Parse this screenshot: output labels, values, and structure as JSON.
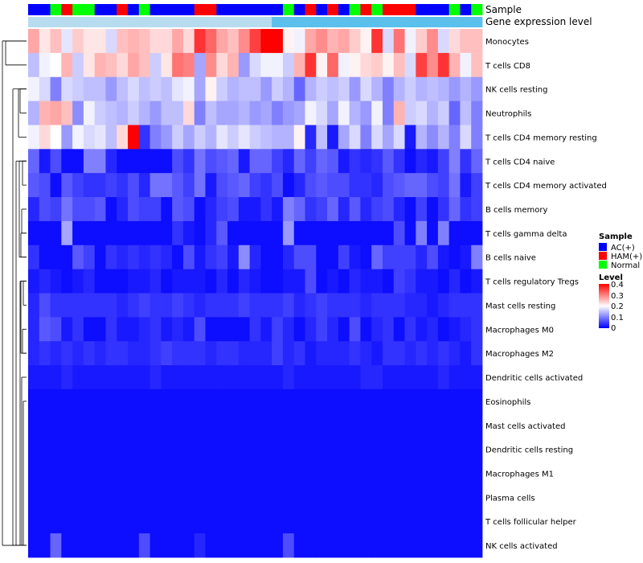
{
  "chart_data": {
    "type": "heatmap",
    "title": "",
    "xlabel": "",
    "ylabel": "",
    "rows": [
      "Monocytes",
      "T cells CD8",
      "NK cells resting",
      "Neutrophils",
      "T cells CD4 memory resting",
      "T cells CD4 naive",
      "T cells CD4 memory activated",
      "B cells memory",
      "T cells gamma delta",
      "B cells naive",
      "T cells regulatory  Tregs",
      "Mast cells resting",
      "Macrophages M0",
      "Macrophages M2",
      "Dendritic cells activated",
      "Eosinophils",
      "Mast cells activated",
      "Dendritic cells resting",
      "Macrophages M1",
      "Plasma cells",
      "T cells follicular helper",
      "NK cells activated"
    ],
    "column_annotations": [
      {
        "name": "Sample",
        "values": [
          "AC(+)",
          "AC(+)",
          "Normal",
          "HAM(+)",
          "Normal",
          "Normal",
          "AC(+)",
          "AC(+)",
          "HAM(+)",
          "AC(+)",
          "Normal",
          "AC(+)",
          "AC(+)",
          "AC(+)",
          "AC(+)",
          "HAM(+)",
          "HAM(+)",
          "AC(+)",
          "AC(+)",
          "AC(+)",
          "AC(+)",
          "AC(+)",
          "AC(+)",
          "Normal",
          "AC(+)",
          "HAM(+)",
          "AC(+)",
          "HAM(+)",
          "AC(+)",
          "Normal",
          "HAM(+)",
          "Normal",
          "HAM(+)",
          "HAM(+)",
          "HAM(+)",
          "AC(+)",
          "AC(+)",
          "AC(+)",
          "Normal",
          "AC(+)",
          "Normal"
        ]
      },
      {
        "name": "Gene expression level",
        "values": [
          "low",
          "low",
          "low",
          "low",
          "low",
          "low",
          "low",
          "low",
          "low",
          "low",
          "low",
          "low",
          "low",
          "low",
          "low",
          "low",
          "low",
          "low",
          "low",
          "low",
          "low",
          "low",
          "high",
          "high",
          "high",
          "high",
          "high",
          "high",
          "high",
          "high",
          "high",
          "high",
          "high",
          "high",
          "high",
          "high",
          "high",
          "high",
          "high",
          "high",
          "high"
        ]
      }
    ],
    "values": [
      [
        0.27,
        0.22,
        0.25,
        0.18,
        0.24,
        0.22,
        0.22,
        0.17,
        0.25,
        0.26,
        0.25,
        0.23,
        0.23,
        0.27,
        0.23,
        0.36,
        0.32,
        0.27,
        0.25,
        0.29,
        0.35,
        0.41,
        0.42,
        0.21,
        0.19,
        0.27,
        0.29,
        0.26,
        0.27,
        0.24,
        0.21,
        0.36,
        0.17,
        0.31,
        0.19,
        0.24,
        0.29,
        0.17,
        0.23,
        0.25,
        0.25
      ],
      [
        0.15,
        0.19,
        0.2,
        0.26,
        0.16,
        0.22,
        0.26,
        0.25,
        0.23,
        0.27,
        0.25,
        0.16,
        0.22,
        0.31,
        0.3,
        0.13,
        0.29,
        0.23,
        0.26,
        0.12,
        0.17,
        0.19,
        0.19,
        0.16,
        0.26,
        0.36,
        0.21,
        0.32,
        0.19,
        0.21,
        0.23,
        0.24,
        0.21,
        0.25,
        0.17,
        0.35,
        0.29,
        0.36,
        0.26,
        0.19,
        0.25
      ],
      [
        0.19,
        0.17,
        0.1,
        0.17,
        0.16,
        0.15,
        0.15,
        0.12,
        0.15,
        0.17,
        0.15,
        0.16,
        0.15,
        0.18,
        0.19,
        0.13,
        0.21,
        0.16,
        0.14,
        0.15,
        0.15,
        0.12,
        0.16,
        0.14,
        0.08,
        0.14,
        0.16,
        0.15,
        0.16,
        0.12,
        0.17,
        0.14,
        0.1,
        0.14,
        0.16,
        0.14,
        0.15,
        0.14,
        0.12,
        0.14,
        0.12
      ],
      [
        0.14,
        0.26,
        0.27,
        0.25,
        0.11,
        0.19,
        0.16,
        0.15,
        0.14,
        0.16,
        0.14,
        0.12,
        0.15,
        0.15,
        0.23,
        0.1,
        0.15,
        0.13,
        0.13,
        0.14,
        0.12,
        0.13,
        0.1,
        0.12,
        0.13,
        0.19,
        0.17,
        0.13,
        0.19,
        0.14,
        0.12,
        0.19,
        0.1,
        0.26,
        0.16,
        0.17,
        0.14,
        0.16,
        0.08,
        0.15,
        0.1
      ],
      [
        0.19,
        0.23,
        0.2,
        0.12,
        0.19,
        0.17,
        0.18,
        0.15,
        0.23,
        0.42,
        0.04,
        0.1,
        0.12,
        0.16,
        0.13,
        0.16,
        0.14,
        0.18,
        0.16,
        0.18,
        0.16,
        0.15,
        0.14,
        0.14,
        0.21,
        0.03,
        0.15,
        0.02,
        0.13,
        0.17,
        0.1,
        0.17,
        0.13,
        0.17,
        0.02,
        0.14,
        0.11,
        0.14,
        0.1,
        0.17,
        0.1
      ],
      [
        0.08,
        0.02,
        0.06,
        0.01,
        0.01,
        0.1,
        0.1,
        0.03,
        0.01,
        0.01,
        0.01,
        0.01,
        0.01,
        0.06,
        0.04,
        0.09,
        0.06,
        0.07,
        0.08,
        0.02,
        0.08,
        0.08,
        0.05,
        0.03,
        0.08,
        0.05,
        0.08,
        0.07,
        0.02,
        0.04,
        0.03,
        0.04,
        0.07,
        0.04,
        0.01,
        0.03,
        0.02,
        0.05,
        0.1,
        0.04,
        0.08
      ],
      [
        0.07,
        0.06,
        0.01,
        0.07,
        0.05,
        0.04,
        0.04,
        0.05,
        0.04,
        0.06,
        0.03,
        0.09,
        0.09,
        0.07,
        0.05,
        0.09,
        0.02,
        0.06,
        0.07,
        0.08,
        0.05,
        0.04,
        0.06,
        0.01,
        0.03,
        0.06,
        0.07,
        0.06,
        0.06,
        0.04,
        0.04,
        0.03,
        0.06,
        0.07,
        0.08,
        0.08,
        0.06,
        0.05,
        0.09,
        0.02,
        0.05
      ],
      [
        0.03,
        0.06,
        0.05,
        0.09,
        0.06,
        0.06,
        0.07,
        0.01,
        0.03,
        0.06,
        0.05,
        0.05,
        0.01,
        0.07,
        0.06,
        0.01,
        0.03,
        0.05,
        0.06,
        0.02,
        0.02,
        0.04,
        0.02,
        0.1,
        0.08,
        0.04,
        0.05,
        0.08,
        0.03,
        0.07,
        0.03,
        0.05,
        0.06,
        0.03,
        0.01,
        0.05,
        0.01,
        0.04,
        0.08,
        0.04,
        0.05
      ],
      [
        0.01,
        0.01,
        0.01,
        0.13,
        0.01,
        0.01,
        0.01,
        0.01,
        0.01,
        0.01,
        0.01,
        0.01,
        0.01,
        0.04,
        0.02,
        0.01,
        0.03,
        0.07,
        0.01,
        0.01,
        0.01,
        0.01,
        0.01,
        0.12,
        0.01,
        0.01,
        0.01,
        0.01,
        0.01,
        0.01,
        0.01,
        0.01,
        0.01,
        0.06,
        0.01,
        0.1,
        0.01,
        0.1,
        0.01,
        0.01,
        0.01
      ],
      [
        0.04,
        0.01,
        0.01,
        0.01,
        0.07,
        0.05,
        0.01,
        0.04,
        0.03,
        0.04,
        0.03,
        0.04,
        0.03,
        0.01,
        0.06,
        0.02,
        0.04,
        0.05,
        0.02,
        0.11,
        0.03,
        0.01,
        0.01,
        0.03,
        0.06,
        0.06,
        0.01,
        0.01,
        0.05,
        0.02,
        0.01,
        0.08,
        0.05,
        0.05,
        0.05,
        0.03,
        0.06,
        0.02,
        0.01,
        0.02,
        0.1
      ],
      [
        0.02,
        0.03,
        0.02,
        0.01,
        0.02,
        0.03,
        0.01,
        0.01,
        0.01,
        0.02,
        0.02,
        0.03,
        0.01,
        0.02,
        0.02,
        0.02,
        0.01,
        0.03,
        0.01,
        0.03,
        0.02,
        0.01,
        0.01,
        0.02,
        0.02,
        0.06,
        0.01,
        0.02,
        0.01,
        0.03,
        0.02,
        0.02,
        0.01,
        0.05,
        0.04,
        0.02,
        0.02,
        0.01,
        0.03,
        0.01,
        0.02
      ],
      [
        0.03,
        0.06,
        0.04,
        0.04,
        0.04,
        0.04,
        0.04,
        0.04,
        0.03,
        0.04,
        0.05,
        0.04,
        0.04,
        0.05,
        0.04,
        0.03,
        0.04,
        0.04,
        0.04,
        0.05,
        0.04,
        0.04,
        0.04,
        0.05,
        0.03,
        0.04,
        0.05,
        0.04,
        0.04,
        0.04,
        0.03,
        0.04,
        0.04,
        0.04,
        0.03,
        0.03,
        0.02,
        0.03,
        0.04,
        0.04,
        0.04
      ],
      [
        0.03,
        0.07,
        0.06,
        0.02,
        0.04,
        0.01,
        0.01,
        0.04,
        0.02,
        0.02,
        0.03,
        0.04,
        0.02,
        0.03,
        0.02,
        0.06,
        0.01,
        0.01,
        0.01,
        0.01,
        0.04,
        0.02,
        0.05,
        0.03,
        0.01,
        0.03,
        0.05,
        0.03,
        0.01,
        0.06,
        0.01,
        0.03,
        0.04,
        0.01,
        0.04,
        0.02,
        0.03,
        0.01,
        0.02,
        0.03,
        0.04
      ],
      [
        0.03,
        0.04,
        0.03,
        0.04,
        0.03,
        0.04,
        0.03,
        0.04,
        0.04,
        0.03,
        0.03,
        0.04,
        0.05,
        0.04,
        0.04,
        0.04,
        0.03,
        0.04,
        0.04,
        0.03,
        0.03,
        0.03,
        0.05,
        0.03,
        0.04,
        0.02,
        0.03,
        0.03,
        0.03,
        0.04,
        0.03,
        0.02,
        0.04,
        0.04,
        0.03,
        0.04,
        0.03,
        0.04,
        0.03,
        0.02,
        0.04
      ],
      [
        0.02,
        0.02,
        0.02,
        0.03,
        0.02,
        0.02,
        0.02,
        0.02,
        0.02,
        0.02,
        0.02,
        0.03,
        0.02,
        0.02,
        0.02,
        0.02,
        0.02,
        0.02,
        0.02,
        0.02,
        0.02,
        0.02,
        0.02,
        0.03,
        0.02,
        0.02,
        0.02,
        0.02,
        0.02,
        0.02,
        0.03,
        0.03,
        0.02,
        0.02,
        0.02,
        0.02,
        0.02,
        0.03,
        0.02,
        0.02,
        0.02
      ],
      [
        0.01,
        0.01,
        0.01,
        0.01,
        0.01,
        0.01,
        0.01,
        0.01,
        0.01,
        0.01,
        0.01,
        0.01,
        0.01,
        0.01,
        0.01,
        0.01,
        0.01,
        0.01,
        0.01,
        0.01,
        0.01,
        0.01,
        0.01,
        0.01,
        0.01,
        0.01,
        0.01,
        0.01,
        0.01,
        0.01,
        0.01,
        0.01,
        0.01,
        0.01,
        0.01,
        0.01,
        0.01,
        0.01,
        0.01,
        0.01,
        0.01
      ],
      [
        0.01,
        0.01,
        0.01,
        0.01,
        0.01,
        0.01,
        0.01,
        0.01,
        0.01,
        0.01,
        0.01,
        0.01,
        0.01,
        0.01,
        0.01,
        0.01,
        0.01,
        0.01,
        0.01,
        0.01,
        0.01,
        0.01,
        0.01,
        0.01,
        0.01,
        0.01,
        0.01,
        0.01,
        0.01,
        0.01,
        0.01,
        0.01,
        0.01,
        0.01,
        0.01,
        0.01,
        0.01,
        0.01,
        0.01,
        0.01,
        0.01
      ],
      [
        0.01,
        0.01,
        0.01,
        0.01,
        0.01,
        0.01,
        0.01,
        0.01,
        0.01,
        0.01,
        0.01,
        0.01,
        0.01,
        0.01,
        0.01,
        0.01,
        0.01,
        0.01,
        0.01,
        0.01,
        0.01,
        0.01,
        0.01,
        0.01,
        0.01,
        0.01,
        0.01,
        0.01,
        0.01,
        0.01,
        0.01,
        0.01,
        0.01,
        0.01,
        0.01,
        0.01,
        0.01,
        0.01,
        0.01,
        0.01,
        0.01
      ],
      [
        0.01,
        0.01,
        0.01,
        0.01,
        0.01,
        0.01,
        0.01,
        0.01,
        0.01,
        0.01,
        0.01,
        0.01,
        0.01,
        0.01,
        0.01,
        0.01,
        0.01,
        0.01,
        0.01,
        0.01,
        0.01,
        0.01,
        0.01,
        0.01,
        0.01,
        0.01,
        0.01,
        0.01,
        0.01,
        0.01,
        0.01,
        0.01,
        0.01,
        0.01,
        0.01,
        0.01,
        0.01,
        0.01,
        0.01,
        0.01,
        0.01
      ],
      [
        0.01,
        0.01,
        0.01,
        0.01,
        0.01,
        0.01,
        0.01,
        0.01,
        0.01,
        0.01,
        0.01,
        0.01,
        0.01,
        0.01,
        0.01,
        0.01,
        0.01,
        0.01,
        0.01,
        0.01,
        0.01,
        0.01,
        0.01,
        0.01,
        0.01,
        0.01,
        0.01,
        0.01,
        0.01,
        0.01,
        0.01,
        0.01,
        0.01,
        0.01,
        0.01,
        0.01,
        0.01,
        0.01,
        0.01,
        0.01,
        0.01
      ],
      [
        0.01,
        0.01,
        0.01,
        0.01,
        0.01,
        0.01,
        0.01,
        0.01,
        0.01,
        0.01,
        0.01,
        0.01,
        0.01,
        0.01,
        0.01,
        0.01,
        0.01,
        0.01,
        0.01,
        0.01,
        0.01,
        0.01,
        0.01,
        0.01,
        0.01,
        0.01,
        0.01,
        0.01,
        0.01,
        0.01,
        0.01,
        0.01,
        0.01,
        0.01,
        0.01,
        0.01,
        0.01,
        0.01,
        0.01,
        0.01,
        0.01
      ],
      [
        0.01,
        0.01,
        0.08,
        0.01,
        0.01,
        0.01,
        0.01,
        0.01,
        0.01,
        0.01,
        0.06,
        0.01,
        0.01,
        0.01,
        0.01,
        0.03,
        0.01,
        0.01,
        0.01,
        0.01,
        0.01,
        0.01,
        0.01,
        0.06,
        0.01,
        0.01,
        0.01,
        0.01,
        0.01,
        0.01,
        0.01,
        0.01,
        0.01,
        0.01,
        0.01,
        0.01,
        0.01,
        0.01,
        0.01,
        0.01,
        0.01
      ]
    ],
    "color_scale": {
      "low": "#0000FF",
      "mid": "#FFFFFF",
      "high": "#FF0000",
      "range": [
        0,
        0.4
      ]
    },
    "legend": {
      "sample": {
        "title": "Sample",
        "items": [
          {
            "label": "AC(+)",
            "color": "#0000FF"
          },
          {
            "label": "HAM(+)",
            "color": "#FF0000"
          },
          {
            "label": "Normal",
            "color": "#00FF00"
          }
        ]
      },
      "level": {
        "title": "Level",
        "ticks": [
          0.4,
          0.3,
          0.2,
          0.1,
          0
        ]
      }
    },
    "annotation_colors": {
      "gene_low": "#B8DCEF",
      "gene_high": "#5BC0EB"
    },
    "row_dendrogram": true
  }
}
